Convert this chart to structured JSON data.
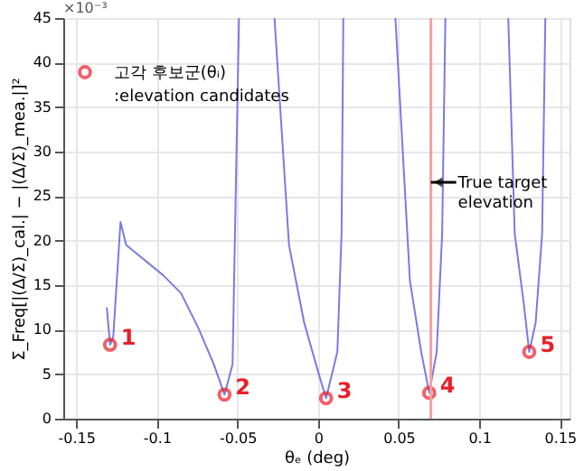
{
  "chart_data": {
    "type": "line",
    "xlabel": "θₑ (deg)",
    "ylabel": "Σ_Freq[|(Δ/Σ)_cal.| − |(Δ/Σ)_mea.|]²",
    "xlim": [
      -0.158,
      0.156
    ],
    "xticks": [
      -0.15,
      -0.1,
      -0.05,
      0,
      0.05,
      0.1,
      0.15
    ],
    "ylim": [
      0,
      45
    ],
    "yticks": [
      0,
      5,
      10,
      15,
      20,
      25,
      30,
      35,
      40,
      45
    ],
    "grid": true,
    "legend": "top left",
    "series": [
      {
        "type": "line",
        "color": "#7b7be0",
        "marker": "none",
        "x": [
          -0.131,
          -0.129,
          -0.127,
          -0.1225,
          -0.119,
          -0.096,
          -0.085,
          -0.074,
          -0.0646,
          -0.058,
          -0.053,
          -0.0515,
          -0.049,
          -0.038,
          -0.027,
          -0.018,
          -0.0086,
          0.0008,
          0.005,
          0.012,
          0.0146,
          0.0157,
          0.032,
          0.048,
          0.057,
          0.064,
          0.069,
          0.0736,
          0.077,
          0.079,
          0.098,
          0.118,
          0.122,
          0.1277,
          0.131,
          0.135,
          0.139,
          0.141
        ],
        "values": [
          12.5,
          8.3,
          9.2,
          22.1,
          19.5,
          16.1,
          14.1,
          10.1,
          6.1,
          2.7,
          6.1,
          20.8,
          45,
          null,
          45,
          19.5,
          10.8,
          4.8,
          2.3,
          7.5,
          20.8,
          45,
          null,
          45,
          15.5,
          7.5,
          2.9,
          7.5,
          20.8,
          45,
          null,
          45,
          20.8,
          12.8,
          7.5,
          10.8,
          20.8,
          45
        ]
      },
      {
        "type": "scatter",
        "name": "고각 후보군(θᵢ)\n:elevation candidates",
        "color": "#e8202a",
        "marker": "circle",
        "x": [
          -0.129,
          -0.058,
          0.005,
          0.069,
          0.131
        ],
        "values": [
          8.3,
          2.7,
          2.3,
          2.9,
          7.5
        ]
      }
    ],
    "ref_lines": [
      {
        "axis": "x",
        "value": 0.07,
        "color": "#f4a0a0",
        "line_style": "solid",
        "label": "True target\nelevation"
      }
    ],
    "annotations": [
      "×10⁻³",
      {
        "text": "1",
        "x": -0.129,
        "y": 8.3
      },
      {
        "text": "2",
        "x": -0.058,
        "y": 2.7
      },
      {
        "text": "3",
        "x": 0.005,
        "y": 2.3
      },
      {
        "text": "4",
        "x": 0.069,
        "y": 2.9
      },
      {
        "text": "5",
        "x": 0.131,
        "y": 7.5
      }
    ]
  }
}
